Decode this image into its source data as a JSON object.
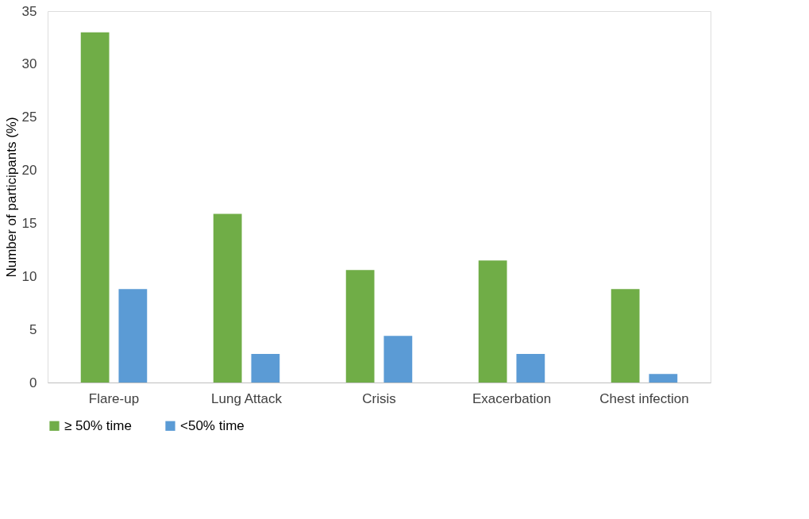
{
  "chart_data": {
    "type": "bar",
    "ylabel": "Number of participants (%)",
    "categories": [
      "Flare-up",
      "Lung Attack",
      "Crisis",
      "Exacerbation",
      "Chest infection"
    ],
    "series": [
      {
        "name": "≥ 50% time",
        "color": "#70ad47",
        "values": [
          33,
          15.9,
          10.6,
          11.5,
          8.8
        ]
      },
      {
        "name": "<50% time",
        "color": "#5b9bd5",
        "values": [
          8.8,
          2.7,
          4.4,
          2.7,
          0.8
        ]
      }
    ],
    "ylim": [
      0,
      35
    ],
    "yticks": [
      0,
      5,
      10,
      15,
      20,
      25,
      30,
      35
    ],
    "grid": false,
    "legend": "bottom"
  }
}
